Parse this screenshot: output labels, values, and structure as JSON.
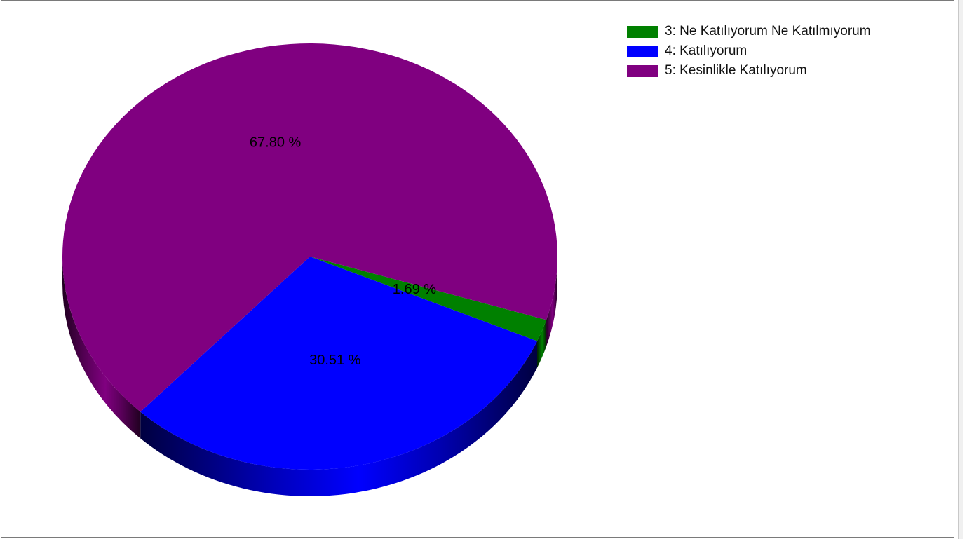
{
  "chart_data": {
    "type": "pie",
    "style": "3d",
    "categories": [
      "3: Ne Katılıyorum Ne Katılmıyorum",
      "4: Katılıyorum",
      "5: Kesinlikle Katılıyorum"
    ],
    "values": [
      1.69,
      30.51,
      67.8
    ],
    "labels": [
      "1.69 %",
      "30.51 %",
      "67.80 %"
    ],
    "colors": [
      "#008000",
      "#0000ff",
      "#800080"
    ],
    "legend_position": "top-right",
    "title": ""
  }
}
